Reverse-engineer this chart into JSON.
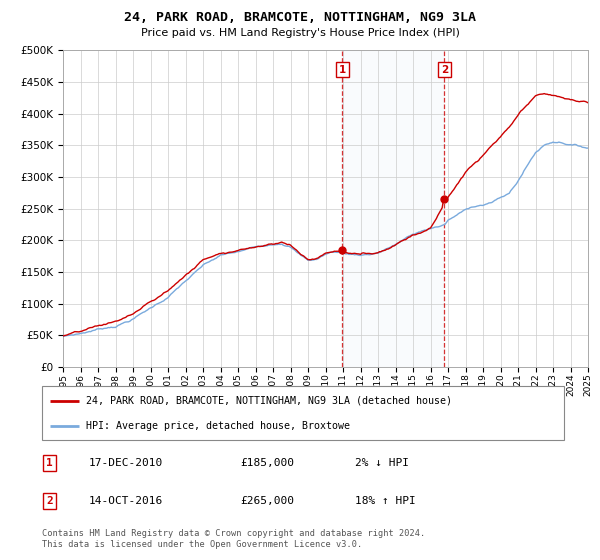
{
  "title": "24, PARK ROAD, BRAMCOTE, NOTTINGHAM, NG9 3LA",
  "subtitle": "Price paid vs. HM Land Registry's House Price Index (HPI)",
  "legend_line1": "24, PARK ROAD, BRAMCOTE, NOTTINGHAM, NG9 3LA (detached house)",
  "legend_line2": "HPI: Average price, detached house, Broxtowe",
  "sale1_date": "17-DEC-2010",
  "sale1_price": 185000,
  "sale1_label": "2% ↓ HPI",
  "sale2_date": "14-OCT-2016",
  "sale2_price": 265000,
  "sale2_label": "18% ↑ HPI",
  "footnote": "Contains HM Land Registry data © Crown copyright and database right 2024.\nThis data is licensed under the Open Government Licence v3.0.",
  "line_color_sold": "#cc0000",
  "line_color_hpi": "#7aaadd",
  "background_color": "#ffffff",
  "ylim": [
    0,
    500000
  ],
  "yticks": [
    0,
    50000,
    100000,
    150000,
    200000,
    250000,
    300000,
    350000,
    400000,
    450000,
    500000
  ],
  "x_start_year": 1995,
  "x_end_year": 2025,
  "sale1_year": 2010.96,
  "sale2_year": 2016.79,
  "span_alpha": 0.1,
  "span_color": "#cce0f0"
}
